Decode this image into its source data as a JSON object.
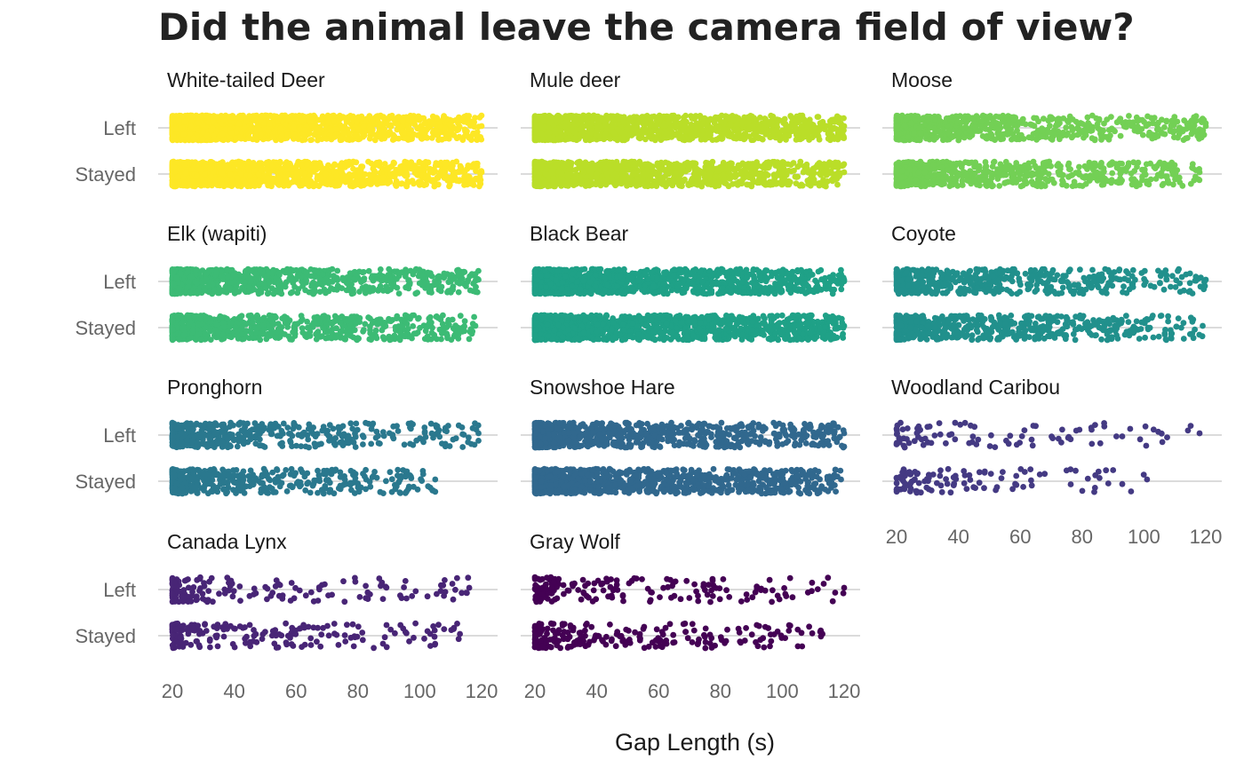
{
  "chart_data": {
    "type": "scatter",
    "subtype": "jittered strip plot, faceted by species",
    "title": "Did the animal leave the camera field of view?",
    "xlabel": "Gap Length (s)",
    "ylabel": "",
    "xlim": [
      20,
      120
    ],
    "x_ticks": [
      20,
      40,
      60,
      80,
      100,
      120
    ],
    "y_categories": [
      "Left",
      "Stayed"
    ],
    "grid": "horizontal lines at each category",
    "legend": "none",
    "facets": [
      {
        "name": "White-tailed Deer",
        "color": "#FDE725",
        "max_gap": {
          "Left": 120,
          "Stayed": 120
        },
        "density": {
          "Left": 1.0,
          "Stayed": 0.9
        }
      },
      {
        "name": "Mule deer",
        "color": "#BADE28",
        "max_gap": {
          "Left": 120,
          "Stayed": 120
        },
        "density": {
          "Left": 0.95,
          "Stayed": 0.85
        }
      },
      {
        "name": "Moose",
        "color": "#73D055",
        "max_gap": {
          "Left": 120,
          "Stayed": 118
        },
        "density": {
          "Left": 0.5,
          "Stayed": 0.45
        }
      },
      {
        "name": "Elk (wapiti)",
        "color": "#3CBB75",
        "max_gap": {
          "Left": 119,
          "Stayed": 118
        },
        "density": {
          "Left": 0.6,
          "Stayed": 0.55
        }
      },
      {
        "name": "Black Bear",
        "color": "#1FA187",
        "max_gap": {
          "Left": 120,
          "Stayed": 120
        },
        "density": {
          "Left": 0.85,
          "Stayed": 0.95
        }
      },
      {
        "name": "Coyote",
        "color": "#21908C",
        "max_gap": {
          "Left": 120,
          "Stayed": 119
        },
        "density": {
          "Left": 0.35,
          "Stayed": 0.4
        }
      },
      {
        "name": "Pronghorn",
        "color": "#2A788E",
        "max_gap": {
          "Left": 119,
          "Stayed": 105
        },
        "density": {
          "Left": 0.3,
          "Stayed": 0.3
        }
      },
      {
        "name": "Snowshoe Hare",
        "color": "#31688E",
        "max_gap": {
          "Left": 120,
          "Stayed": 119
        },
        "density": {
          "Left": 0.55,
          "Stayed": 0.65
        }
      },
      {
        "name": "Woodland Caribou",
        "color": "#443A83",
        "max_gap": {
          "Left": 118,
          "Stayed": 101
        },
        "density": {
          "Left": 0.05,
          "Stayed": 0.06
        }
      },
      {
        "name": "Canada Lynx",
        "color": "#482576",
        "max_gap": {
          "Left": 116,
          "Stayed": 113
        },
        "density": {
          "Left": 0.09,
          "Stayed": 0.12
        }
      },
      {
        "name": "Gray Wolf",
        "color": "#440154",
        "max_gap": {
          "Left": 120,
          "Stayed": 113
        },
        "density": {
          "Left": 0.1,
          "Stayed": 0.14
        }
      }
    ]
  }
}
